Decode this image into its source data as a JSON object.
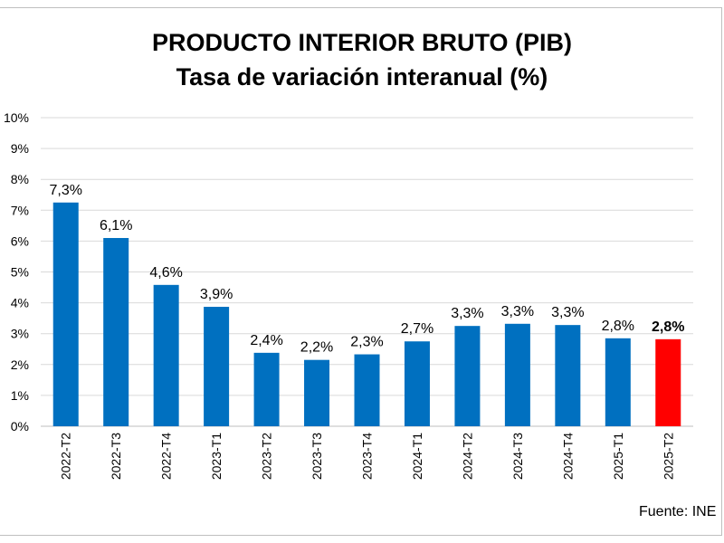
{
  "chart_data": {
    "type": "bar",
    "title": "PRODUCTO INTERIOR BRUTO (PIB)",
    "subtitle": "Tasa de variación interanual (%)",
    "categories": [
      "2022-T2",
      "2022-T3",
      "2022-T4",
      "2023-T1",
      "2023-T2",
      "2023-T3",
      "2023-T4",
      "2024-T1",
      "2024-T2",
      "2024-T3",
      "2024-T4",
      "2025-T1",
      "2025-T2"
    ],
    "values": [
      7.3,
      6.1,
      4.6,
      3.9,
      2.4,
      2.2,
      2.3,
      2.7,
      3.3,
      3.3,
      3.3,
      2.8,
      2.8
    ],
    "data_labels": [
      "7,3%",
      "6,1%",
      "4,6%",
      "3,9%",
      "2,4%",
      "2,2%",
      "2,3%",
      "2,7%",
      "3,3%",
      "3,3%",
      "3,3%",
      "2,8%",
      "2,8%"
    ],
    "bar_heights": [
      7.25,
      6.1,
      4.58,
      3.87,
      2.38,
      2.15,
      2.33,
      2.75,
      3.25,
      3.32,
      3.28,
      2.85,
      2.82
    ],
    "y_ticks": [
      "0%",
      "1%",
      "2%",
      "3%",
      "4%",
      "5%",
      "6%",
      "7%",
      "8%",
      "9%",
      "10%"
    ],
    "ylim": [
      0,
      10
    ],
    "grid": true,
    "legend": "none",
    "colors": {
      "bar": "#0070c0",
      "highlight": "#ff0000",
      "grid": "#d9d9d9",
      "axis": "#bfbfbf"
    },
    "highlight_index": 12,
    "source": "Fuente: INE"
  }
}
